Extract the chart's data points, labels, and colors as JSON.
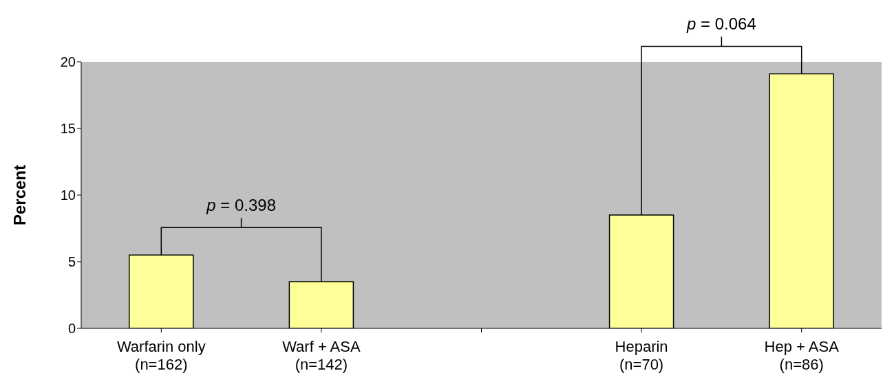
{
  "chart_data": {
    "type": "bar",
    "ylabel": "Percent",
    "categories": [
      "Warfarin only\n(n=162)",
      "Warf + ASA\n(n=142)",
      null,
      "Heparin\n(n=70)",
      "Hep + ASA\n(n=86)"
    ],
    "values": [
      5.5,
      3.5,
      null,
      8.5,
      19.1
    ],
    "color": "#ffff99",
    "ylim": [
      0,
      20
    ],
    "yticks": [
      0,
      5,
      10,
      15,
      20
    ],
    "annotations": [
      "p = 0.398",
      "p = 0.064"
    ]
  }
}
